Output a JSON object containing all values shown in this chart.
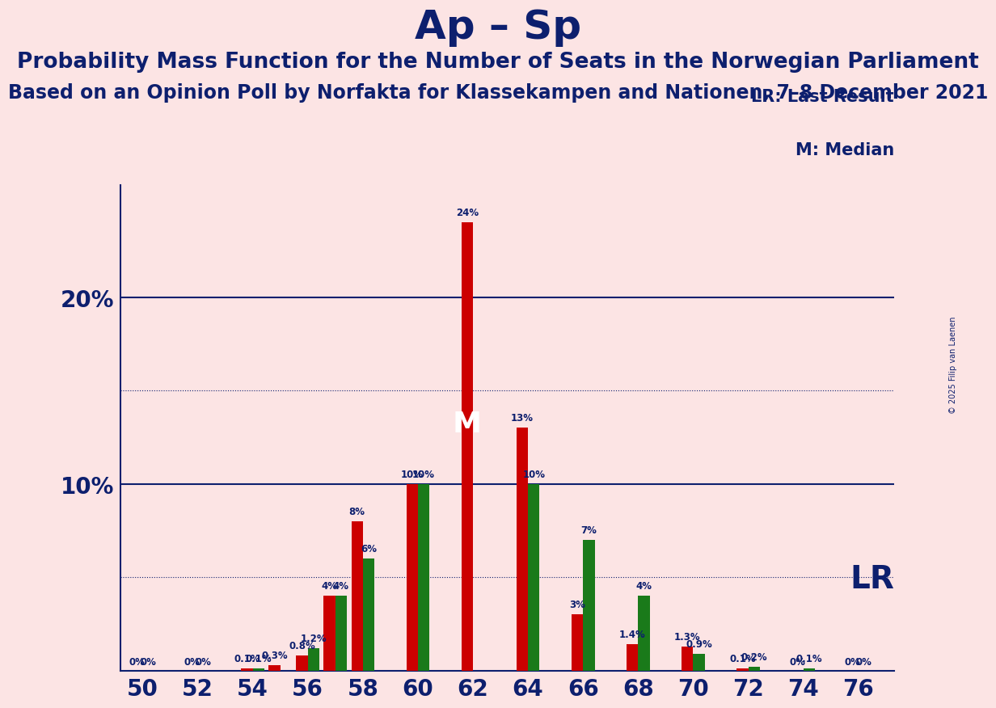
{
  "title": "Ap – Sp",
  "subtitle1": "Probability Mass Function for the Number of Seats in the Norwegian Parliament",
  "subtitle2": "Based on an Opinion Poll by Norfakta for Klassekampen and Nationen, 7–8 December 2021",
  "copyright": "© 2025 Filip van Laenen",
  "background_color": "#fce4e4",
  "title_color": "#0d1f6e",
  "bar_color_red": "#cc0000",
  "bar_color_green": "#1a7a1a",
  "seats": [
    50,
    52,
    54,
    55,
    56,
    57,
    58,
    59,
    60,
    61,
    62,
    63,
    64,
    65,
    66,
    67,
    68,
    69,
    70,
    71,
    72,
    73,
    74,
    76
  ],
  "red_values": [
    0.0,
    0.0,
    0.1,
    0.3,
    0.8,
    4.0,
    8.0,
    0.0,
    10.0,
    0.0,
    24.0,
    0.0,
    13.0,
    0.0,
    3.0,
    0.0,
    1.4,
    0.0,
    1.3,
    0.0,
    0.1,
    0.0,
    0.0,
    0.0
  ],
  "green_values": [
    0.0,
    0.0,
    0.1,
    0.0,
    1.2,
    4.0,
    6.0,
    0.0,
    10.0,
    0.0,
    0.0,
    0.0,
    10.0,
    0.0,
    7.0,
    0.0,
    4.0,
    0.0,
    0.9,
    0.0,
    0.2,
    0.0,
    0.1,
    0.0
  ],
  "red_show_label": [
    true,
    true,
    true,
    true,
    true,
    true,
    true,
    false,
    true,
    false,
    true,
    false,
    true,
    false,
    true,
    false,
    true,
    false,
    true,
    false,
    true,
    false,
    true,
    true
  ],
  "green_show_label": [
    true,
    true,
    true,
    false,
    true,
    true,
    true,
    false,
    true,
    false,
    false,
    false,
    true,
    false,
    true,
    false,
    true,
    false,
    true,
    false,
    true,
    false,
    true,
    true
  ],
  "red_label_vals": [
    "0%",
    "0%",
    "0.1%",
    "0.3%",
    "0.8%",
    "4%",
    "8%",
    "",
    "10%",
    "",
    "24%",
    "",
    "13%",
    "",
    "3%",
    "",
    "1.4%",
    "",
    "1.3%",
    "",
    "0.1%",
    "",
    "0%",
    "0%"
  ],
  "green_label_vals": [
    "0%",
    "0%",
    "0.1%",
    "",
    "1.2%",
    "4%",
    "6%",
    "",
    "10%",
    "",
    "",
    "",
    "10%",
    "",
    "7%",
    "",
    "4%",
    "",
    "0.9%",
    "",
    "0.2%",
    "",
    "0.1%",
    "0%"
  ],
  "median_seat": 62,
  "ylim_max": 26,
  "lr_last_result_text": "LR: Last Result",
  "m_median_text": "M: Median",
  "lr_text": "LR",
  "title_fontsize": 36,
  "subtitle1_fontsize": 19,
  "subtitle2_fontsize": 17,
  "tick_fontsize": 20,
  "ytick_fontsize": 20,
  "label_fontsize": 8.5,
  "annotation_fontsize": 15,
  "lr_fontsize": 28,
  "m_fontsize": 26,
  "copyright_fontsize": 7
}
